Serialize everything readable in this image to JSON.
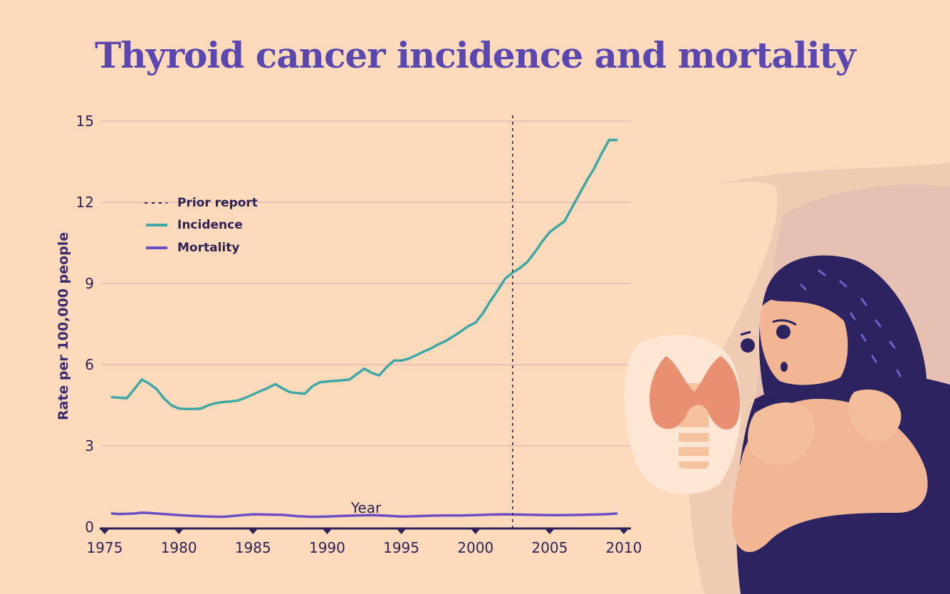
{
  "chart_data": {
    "type": "line",
    "title": "Thyroid cancer incidence and mortality",
    "xlabel": "Year",
    "ylabel": "Rate per 100,000 people",
    "xlim": [
      1975,
      2010
    ],
    "ylim": [
      0,
      15
    ],
    "x_ticks": [
      "1975",
      "1980",
      "1985",
      "1990",
      "1995",
      "2000",
      "2005",
      "2010"
    ],
    "y_ticks": [
      "0",
      "3",
      "6",
      "9",
      "12",
      "15"
    ],
    "grid": true,
    "legend_position": "top-left",
    "legend": [
      "Prior report",
      "Incidence",
      "Mortality"
    ],
    "series": [
      {
        "name": "Incidence",
        "color": "#3fa8a6",
        "x": [
          1975.5,
          1976,
          1976.5,
          1977,
          1977.5,
          1978,
          1978.5,
          1979,
          1979.5,
          1980,
          1980.5,
          1981,
          1981.5,
          1982,
          1982.5,
          1983,
          1983.5,
          1984,
          1984.5,
          1985,
          1985.5,
          1986,
          1986.5,
          1987,
          1987.5,
          1988,
          1988.5,
          1989,
          1989.5,
          1990,
          1990.5,
          1991,
          1991.5,
          1992,
          1992.5,
          1993,
          1993.5,
          1994,
          1994.5,
          1995,
          1995.5,
          1996,
          1996.5,
          1997,
          1997.5,
          1998,
          1998.5,
          1999,
          1999.5,
          2000,
          2000.5,
          2001,
          2001.5,
          2002,
          2002.5,
          2003,
          2003.5,
          2004,
          2004.5,
          2005,
          2005.5,
          2006,
          2006.5,
          2007,
          2007.5,
          2008,
          2008.5,
          2009,
          2009.5
        ],
        "values": [
          4.8,
          4.78,
          4.76,
          5.1,
          5.45,
          5.3,
          5.1,
          4.75,
          4.5,
          4.38,
          4.36,
          4.36,
          4.38,
          4.5,
          4.58,
          4.62,
          4.64,
          4.68,
          4.78,
          4.9,
          5.02,
          5.14,
          5.28,
          5.12,
          4.98,
          4.95,
          4.93,
          5.2,
          5.35,
          5.38,
          5.4,
          5.42,
          5.45,
          5.65,
          5.85,
          5.7,
          5.6,
          5.9,
          6.15,
          6.15,
          6.22,
          6.35,
          6.48,
          6.6,
          6.75,
          6.88,
          7.05,
          7.22,
          7.42,
          7.55,
          7.9,
          8.35,
          8.75,
          9.18,
          9.4,
          9.57,
          9.8,
          10.15,
          10.55,
          10.9,
          11.1,
          11.3,
          11.8,
          12.3,
          12.8,
          13.25,
          13.8,
          14.3,
          14.3
        ]
      },
      {
        "name": "Mortality",
        "color": "#6a4fc0",
        "x": [
          1975.5,
          1976,
          1977,
          1977.5,
          1978,
          1979,
          1980,
          1981,
          1982,
          1983,
          1984,
          1985,
          1986,
          1987,
          1988,
          1989,
          1990,
          1991,
          1992,
          1993,
          1994,
          1995,
          1996,
          1997,
          1998,
          1999,
          2000,
          2001,
          2002,
          2003,
          2004,
          2005,
          2006,
          2007,
          2008,
          2009,
          2009.5
        ],
        "values": [
          0.5,
          0.48,
          0.5,
          0.53,
          0.52,
          0.48,
          0.44,
          0.41,
          0.39,
          0.38,
          0.43,
          0.47,
          0.46,
          0.45,
          0.4,
          0.38,
          0.39,
          0.41,
          0.43,
          0.44,
          0.42,
          0.39,
          0.4,
          0.42,
          0.43,
          0.43,
          0.44,
          0.46,
          0.47,
          0.46,
          0.45,
          0.44,
          0.44,
          0.45,
          0.46,
          0.48,
          0.5
        ]
      },
      {
        "name": "Prior report",
        "type": "vline",
        "x": 2002.5,
        "color": "#2e2258"
      }
    ]
  },
  "colors": {
    "background": "#fcdabb",
    "title": "#5b47b0",
    "text": "#2e2258",
    "grid": "#d9a7b6",
    "incidence": "#3fa8a6",
    "mortality": "#6a4fc0"
  },
  "illustration": {
    "name": "woman-holding-throat-illustration",
    "icon": "thyroid-gland-icon"
  }
}
